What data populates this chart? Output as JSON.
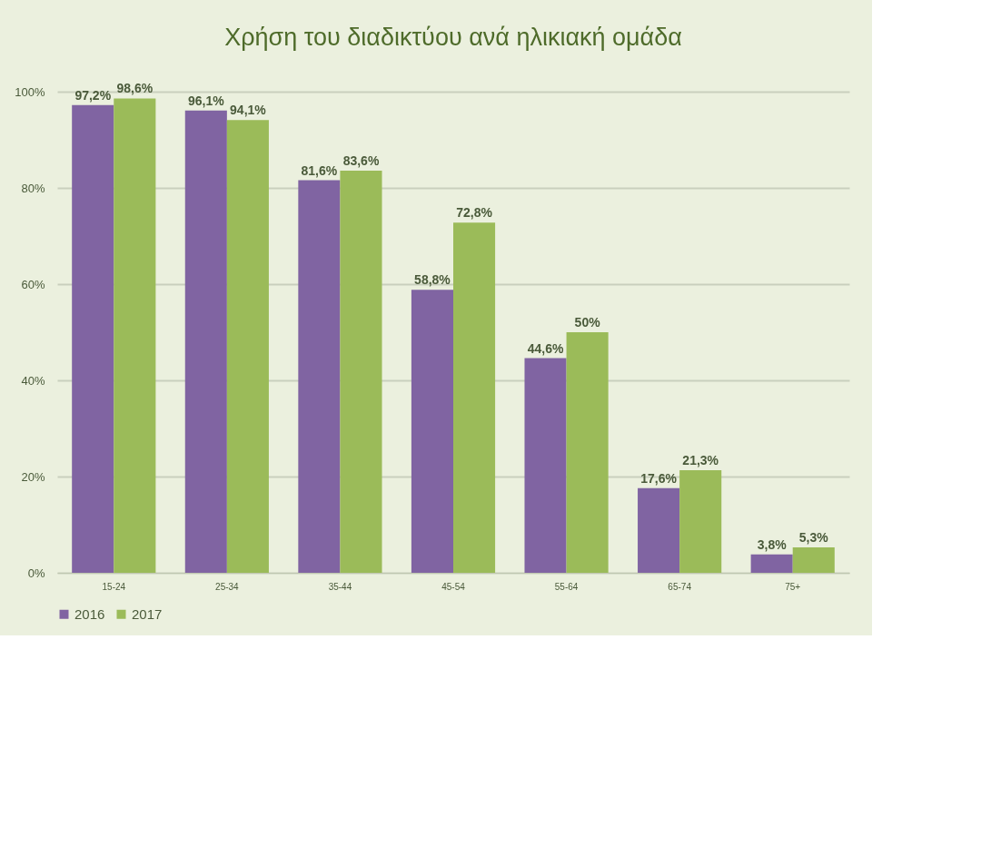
{
  "chart_data": {
    "type": "bar",
    "title": "Χρήση του διαδικτύου ανά ηλικιακή ομάδα",
    "categories": [
      "15-24",
      "25-34",
      "35-44",
      "45-54",
      "55-64",
      "65-74",
      "75+"
    ],
    "series": [
      {
        "name": "2016",
        "color": "#8064a2",
        "values": [
          97.2,
          96.1,
          81.6,
          58.8,
          44.6,
          17.6,
          3.8
        ],
        "value_labels": [
          "97,2%",
          "96,1%",
          "81,6%",
          "58,8%",
          "44,6%",
          "17,6%",
          "3,8%"
        ]
      },
      {
        "name": "2017",
        "color": "#9bbb59",
        "values": [
          98.6,
          94.1,
          83.6,
          72.8,
          50,
          21.3,
          5.3
        ],
        "value_labels": [
          "98,6%",
          "94,1%",
          "83,6%",
          "72,8%",
          "50%",
          "21,3%",
          "5,3%"
        ]
      }
    ],
    "ylim": [
      0,
      100
    ],
    "yticks": [
      {
        "value": 0,
        "label": "0%"
      },
      {
        "value": 20,
        "label": "20%"
      },
      {
        "value": 40,
        "label": "40%"
      },
      {
        "value": 60,
        "label": "60%"
      },
      {
        "value": 80,
        "label": "80%"
      },
      {
        "value": 100,
        "label": "100%"
      }
    ],
    "grid": "y",
    "legend": "bottom"
  }
}
